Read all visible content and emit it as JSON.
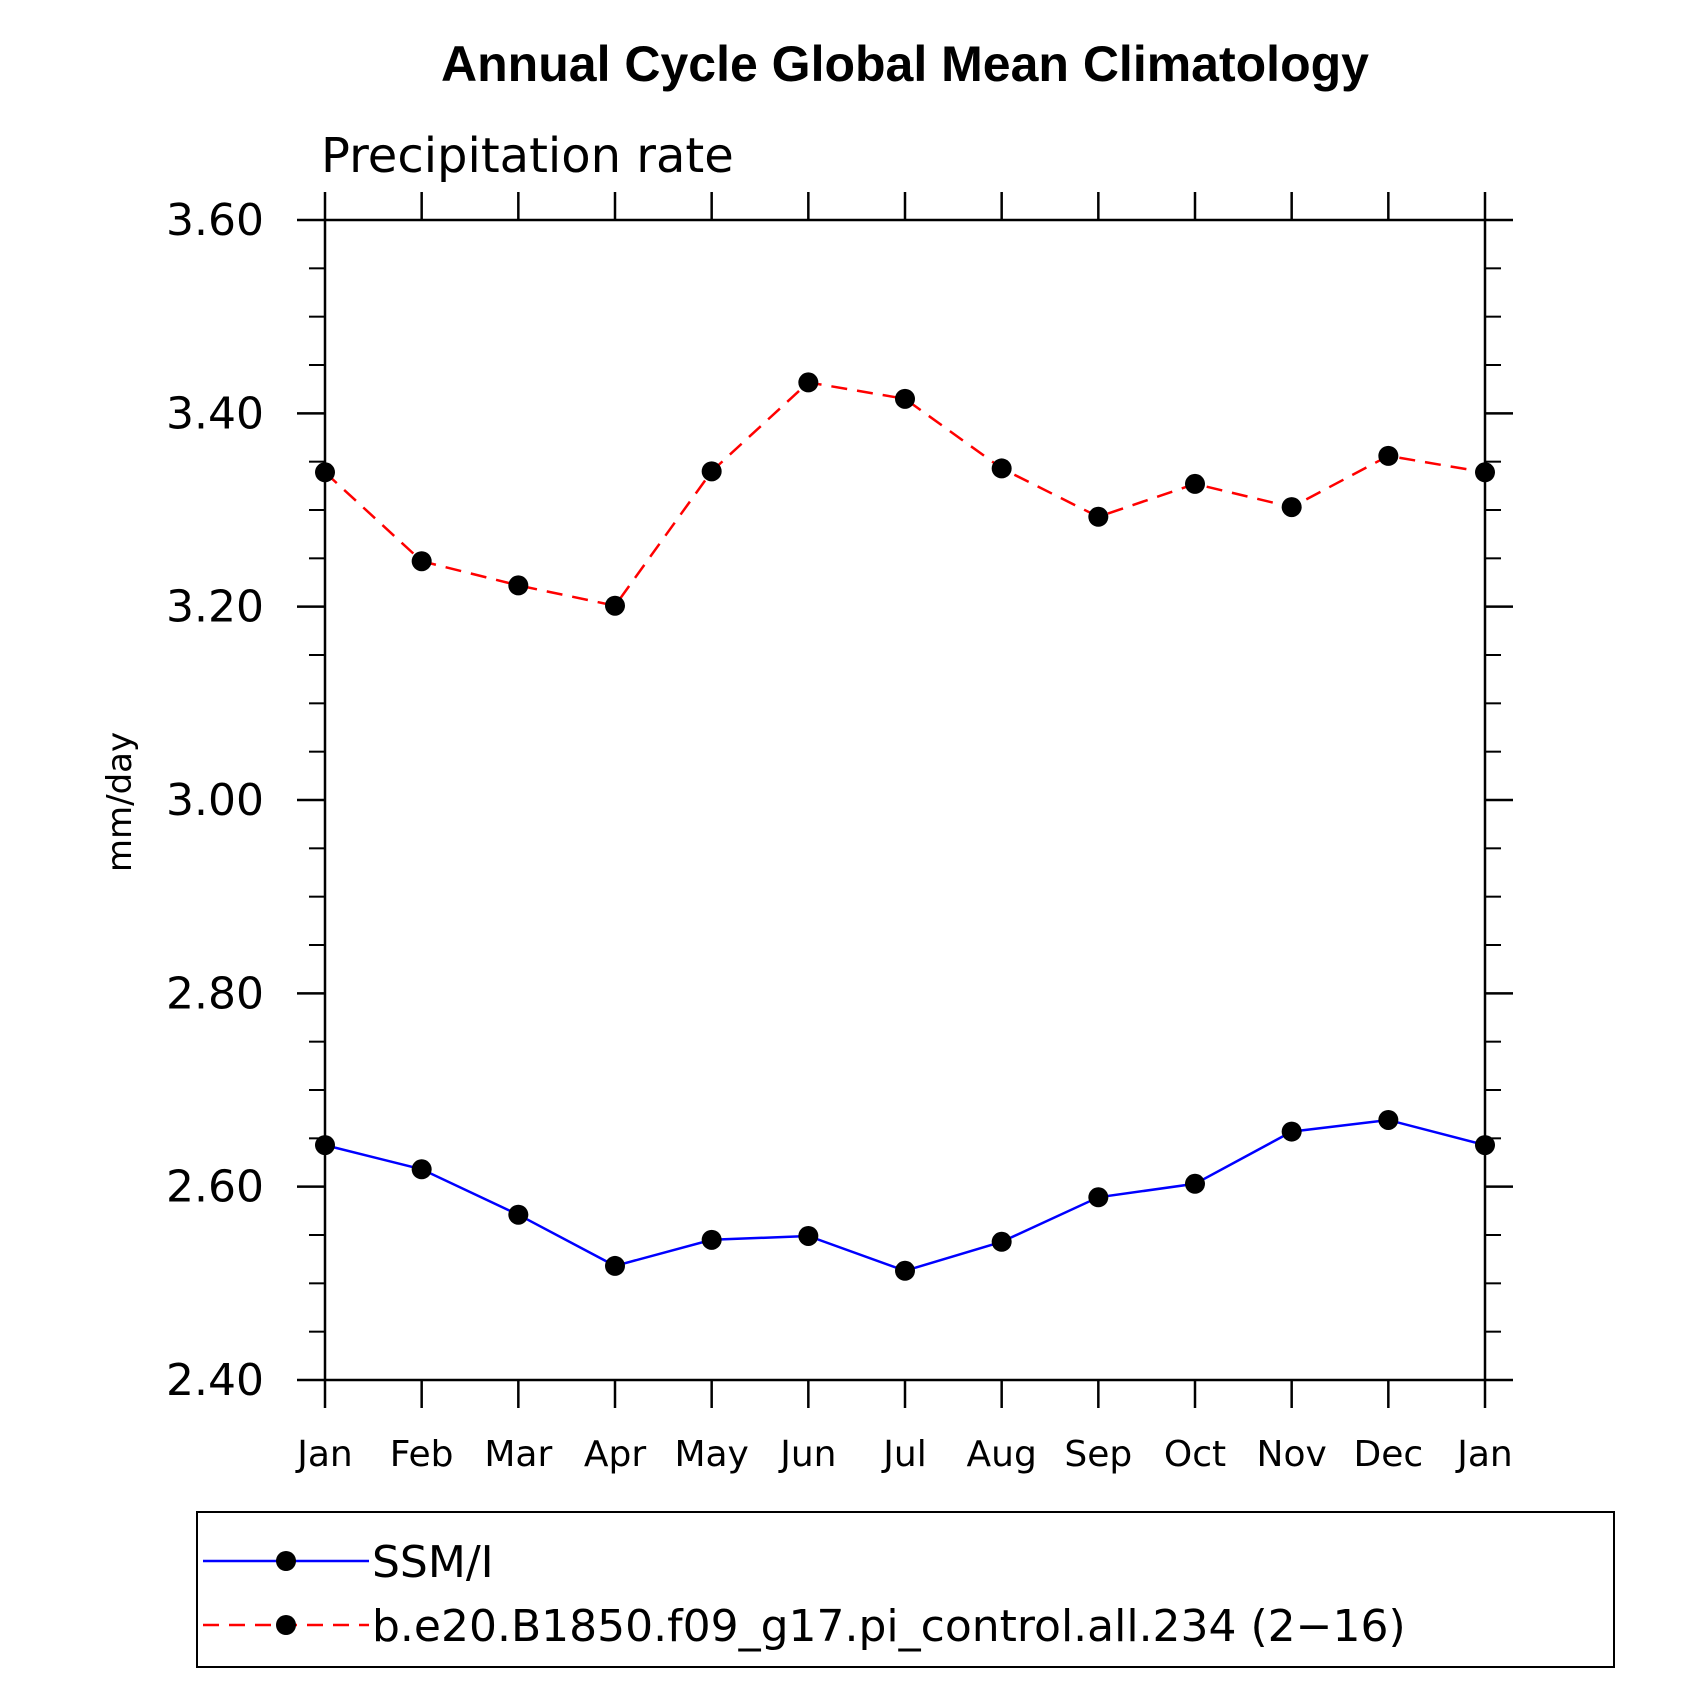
{
  "chart_data": {
    "type": "line",
    "title": "Annual Cycle Global Mean Climatology",
    "subtitle": "Precipitation rate",
    "ylabel": "mm/day",
    "xlabel": "",
    "categories": [
      "Jan",
      "Feb",
      "Mar",
      "Apr",
      "May",
      "Jun",
      "Jul",
      "Aug",
      "Sep",
      "Oct",
      "Nov",
      "Dec",
      "Jan"
    ],
    "ylim": [
      2.4,
      3.6
    ],
    "yticks": [
      "2.40",
      "2.60",
      "2.80",
      "3.00",
      "3.20",
      "3.40",
      "3.60"
    ],
    "grid": false,
    "legend_position": "bottom",
    "series": [
      {
        "name": "SSM/I",
        "color": "#0000ff",
        "style": "solid",
        "marker": "filled-circle",
        "values": [
          2.643,
          2.618,
          2.571,
          2.518,
          2.545,
          2.549,
          2.513,
          2.543,
          2.589,
          2.603,
          2.657,
          2.669,
          2.643
        ]
      },
      {
        "name": "b.e20.B1850.f09_g17.pi_control.all.234 (2−16)",
        "color": "#ff0000",
        "style": "dashed",
        "marker": "filled-circle",
        "values": [
          3.339,
          3.247,
          3.222,
          3.201,
          3.34,
          3.432,
          3.415,
          3.343,
          3.293,
          3.327,
          3.303,
          3.356,
          3.339
        ]
      }
    ]
  }
}
